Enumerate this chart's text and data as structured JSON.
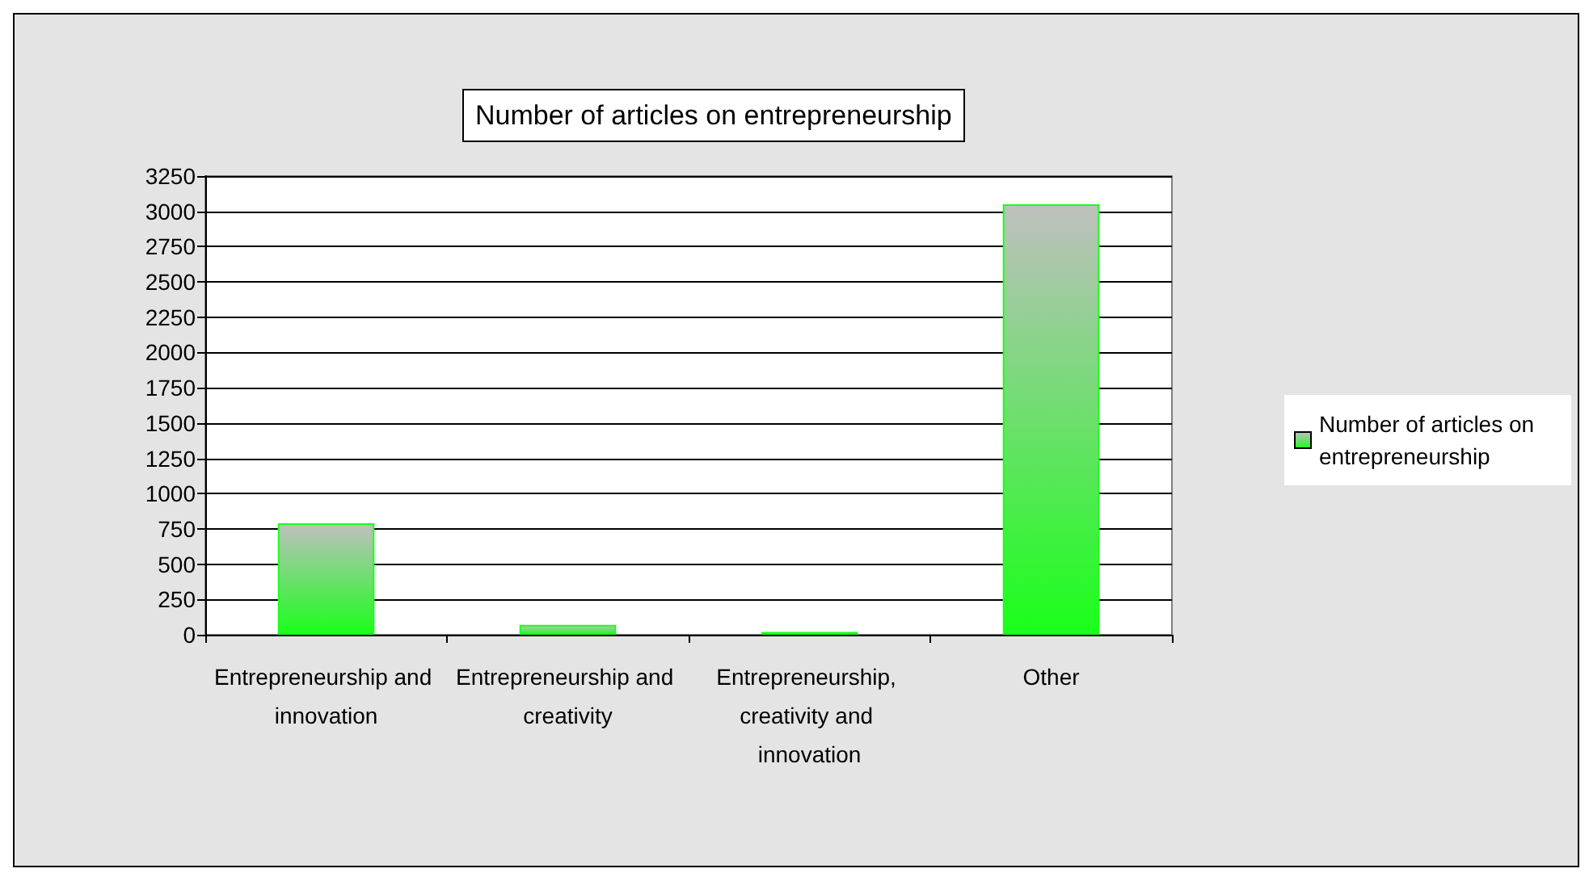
{
  "chart_data": {
    "type": "bar",
    "title": "Number of articles on entrepreneurship",
    "categories": [
      "Entrepreneurship and innovation",
      "Entrepreneurship and creativity",
      "Entrepreneurship, creativity and innovation",
      "Other"
    ],
    "series": [
      {
        "name": "Number of articles on entrepreneurship",
        "color": "#1aff1a",
        "values": [
          790,
          70,
          20,
          3050
        ]
      }
    ],
    "ylim": [
      0,
      3250
    ],
    "yticks": [
      0,
      250,
      500,
      750,
      1000,
      1250,
      1500,
      1750,
      2000,
      2250,
      2500,
      2750,
      3000,
      3250
    ],
    "grid": "y",
    "legend": "right"
  }
}
